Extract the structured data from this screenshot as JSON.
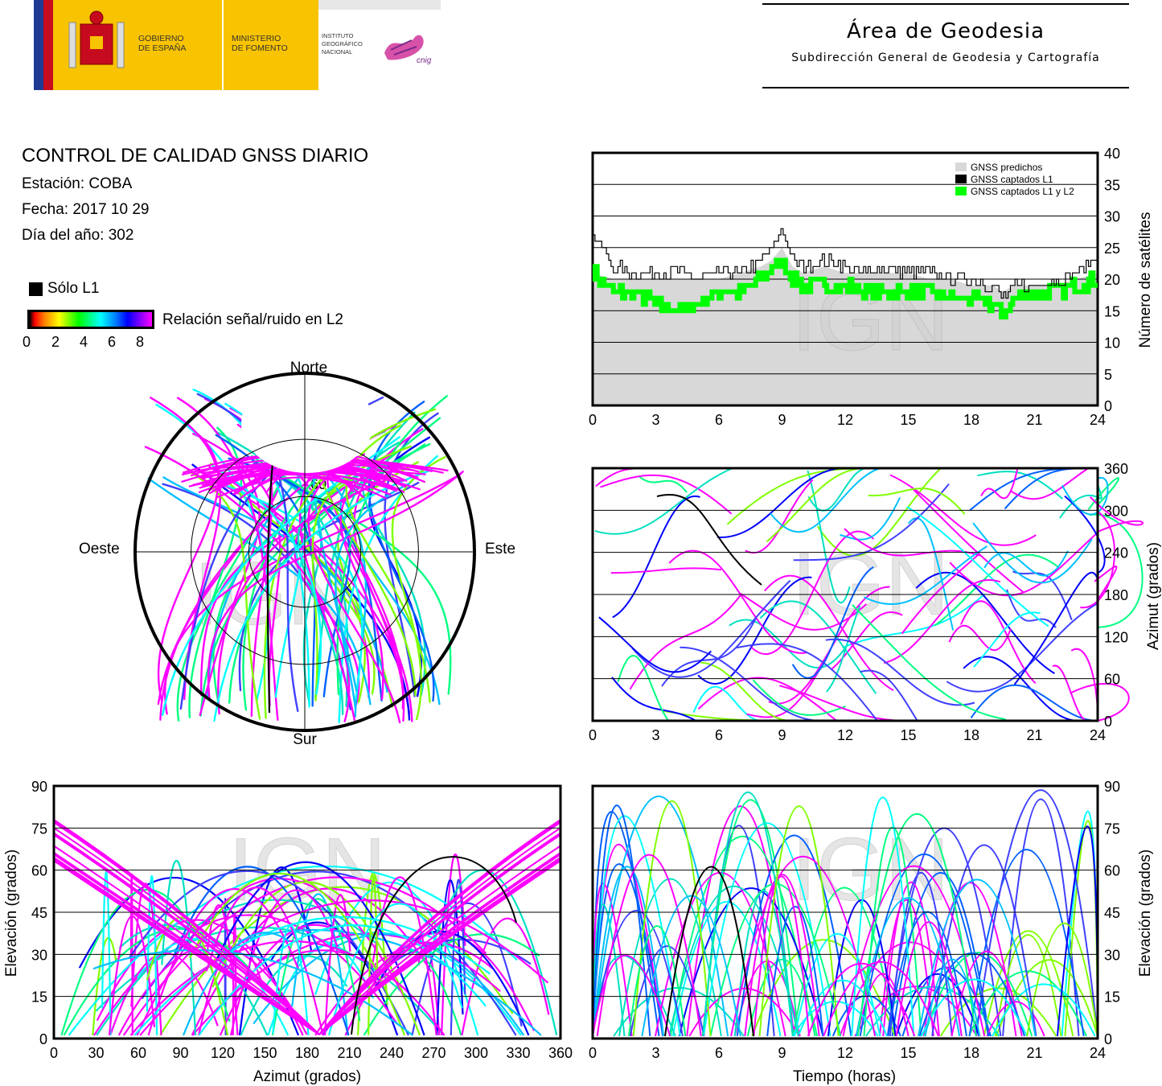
{
  "header": {
    "gov_line1": "GOBIERNO",
    "gov_line2": "DE ESPAÑA",
    "min_line1": "MINISTERIO",
    "min_line2": "DE FOMENTO",
    "ign_line1": "INSTITUTO",
    "ign_line2": "GEOGRÁFICO",
    "ign_line3": "NACIONAL",
    "cnig": "cnig",
    "area_title": "Área de Geodesia",
    "area_subtitle": "Subdirección General de Geodesia y Cartografía"
  },
  "info": {
    "title": "CONTROL DE CALIDAD GNSS DIARIO",
    "station": "Estación: COBA",
    "date": "Fecha: 2017 10 29",
    "doy": "Día del año: 302"
  },
  "legend": {
    "only_l1": "Sólo L1",
    "snr_label": "Relación señal/ruido en L2",
    "snr_ticks": [
      "0",
      "2",
      "4",
      "6",
      "8"
    ]
  },
  "watermark": "IGN",
  "colors": {
    "predicted": "#d8d8d8",
    "captured_l1": "#000000",
    "captured_l1l2": "#00ff00",
    "snr_scale": [
      "#000000",
      "#ff0000",
      "#ff8000",
      "#ffff00",
      "#00ff00",
      "#00ffff",
      "#0080ff",
      "#0000ff",
      "#ff00ff"
    ]
  },
  "chart_data": [
    {
      "type": "line",
      "id": "satellite-count",
      "ylabel": "Número de satélites",
      "xlim": [
        0,
        24
      ],
      "ylim": [
        0,
        40
      ],
      "xticks": [
        "0",
        "3",
        "6",
        "9",
        "12",
        "15",
        "18",
        "21",
        "24"
      ],
      "yticks": [
        "0",
        "5",
        "10",
        "15",
        "20",
        "25",
        "30",
        "35",
        "40"
      ],
      "grid": true,
      "legend_position": "top-right",
      "x": [
        0,
        1,
        2,
        3,
        4,
        5,
        6,
        7,
        8,
        8.5,
        9,
        9.5,
        10,
        11,
        12,
        13,
        14,
        15,
        16,
        17,
        18,
        19,
        19.5,
        20,
        21,
        22,
        23,
        24
      ],
      "series": [
        {
          "name": "GNSS predichos",
          "values": [
            21,
            20,
            20,
            20,
            20,
            20,
            20,
            21,
            22,
            23,
            25,
            22,
            21,
            22,
            21,
            21,
            21,
            21,
            20,
            20,
            19,
            19,
            18,
            19,
            19,
            19,
            20,
            21
          ]
        },
        {
          "name": "GNSS captados L1",
          "values": [
            27,
            22,
            21,
            21,
            21,
            20,
            21,
            21,
            23,
            25,
            28,
            23,
            22,
            23,
            22,
            21,
            22,
            21,
            21,
            20,
            20,
            19,
            17,
            19,
            19,
            20,
            21,
            24
          ]
        },
        {
          "name": "GNSS captados L1 y L2",
          "values": [
            21,
            18,
            18,
            16,
            15,
            16,
            18,
            18,
            20,
            22,
            23,
            20,
            19,
            19,
            19,
            18,
            18,
            18,
            18,
            17,
            17,
            16,
            14,
            17,
            18,
            18,
            19,
            20
          ]
        }
      ]
    },
    {
      "type": "scatter",
      "id": "skyplot",
      "directions": {
        "north": "Norte",
        "south": "Sur",
        "east": "Este",
        "west": "Oeste"
      },
      "elevation_rings": [
        "30",
        "60"
      ]
    },
    {
      "type": "scatter",
      "id": "azimuth-time",
      "ylabel": "Azimut (grados)",
      "xlim": [
        0,
        24
      ],
      "ylim": [
        0,
        360
      ],
      "xticks": [
        "0",
        "3",
        "6",
        "9",
        "12",
        "15",
        "18",
        "21",
        "24"
      ],
      "yticks": [
        "0",
        "60",
        "120",
        "180",
        "240",
        "300",
        "360"
      ],
      "grid": true
    },
    {
      "type": "scatter",
      "id": "elevation-azimuth",
      "xlabel": "Azimut (grados)",
      "ylabel": "Elevación (grados)",
      "xlim": [
        0,
        360
      ],
      "ylim": [
        0,
        90
      ],
      "xticks": [
        "0",
        "30",
        "60",
        "90",
        "120",
        "150",
        "180",
        "210",
        "240",
        "270",
        "300",
        "330",
        "360"
      ],
      "yticks": [
        "0",
        "15",
        "30",
        "45",
        "60",
        "75",
        "90"
      ],
      "grid": true
    },
    {
      "type": "scatter",
      "id": "elevation-time",
      "xlabel": "Tiempo (horas)",
      "ylabel": "Elevación (grados)",
      "xlim": [
        0,
        24
      ],
      "ylim": [
        0,
        90
      ],
      "xticks": [
        "0",
        "3",
        "6",
        "9",
        "12",
        "15",
        "18",
        "21",
        "24"
      ],
      "yticks": [
        "0",
        "15",
        "30",
        "45",
        "60",
        "75",
        "90"
      ],
      "grid": true
    }
  ]
}
